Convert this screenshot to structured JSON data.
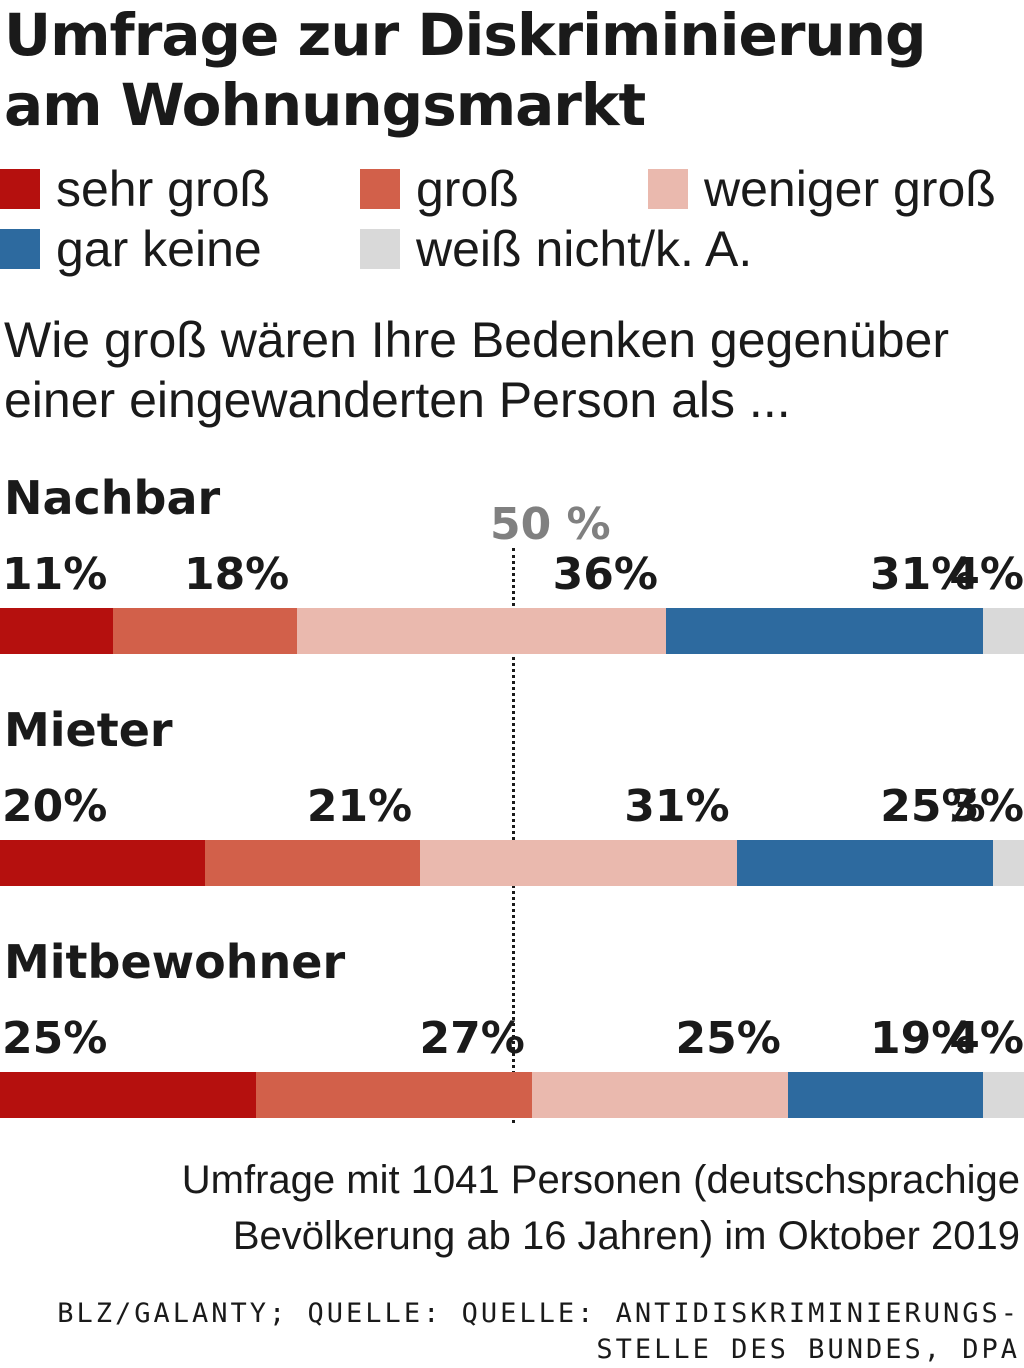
{
  "title": "Umfrage zur Diskriminierung am Wohnungsmarkt",
  "legend": [
    {
      "label": "sehr groß",
      "color": "#b5100e"
    },
    {
      "label": "groß",
      "color": "#d2604a"
    },
    {
      "label": "weniger groß",
      "color": "#eab9ae"
    },
    {
      "label": "gar keine",
      "color": "#2d6a9f"
    },
    {
      "label": "weiß nicht/k. A.",
      "color": "#d9d9d9"
    }
  ],
  "question": "Wie groß wären Ihre Bedenken gegenüber einer eingewanderten Person als ...",
  "chart_data": {
    "type": "bar",
    "orientation": "horizontal-stacked",
    "categories": [
      "Nachbar",
      "Mieter",
      "Mitbewohner"
    ],
    "series": [
      {
        "name": "sehr groß",
        "values": [
          11,
          20,
          25
        ],
        "labels": [
          "11%",
          "20%",
          "25%"
        ]
      },
      {
        "name": "groß",
        "values": [
          18,
          21,
          27
        ],
        "labels": [
          "18%",
          "21%",
          "27%"
        ]
      },
      {
        "name": "weniger groß",
        "values": [
          36,
          31,
          25
        ],
        "labels": [
          "36%",
          "31%",
          "25%"
        ]
      },
      {
        "name": "gar keine",
        "values": [
          31,
          25,
          19
        ],
        "labels": [
          "31%",
          "25%",
          "19%"
        ]
      },
      {
        "name": "weiß nicht/k. A.",
        "values": [
          4,
          3,
          4
        ],
        "labels": [
          "4%",
          "3%",
          "4%"
        ]
      }
    ],
    "reference_line": {
      "value": 50,
      "label": "50 %"
    },
    "xlim": [
      0,
      100
    ]
  },
  "note": {
    "line1": "Umfrage mit 1041 Personen (deutschsprachige",
    "line2": "Bevölkerung ab 16 Jahren) im Oktober 2019"
  },
  "source": {
    "line1": "BLZ/GALANTY; QUELLE: QUELLE: ANTIDISKRIMINIERUNGS-",
    "line2": "STELLE DES BUNDES, DPA"
  }
}
